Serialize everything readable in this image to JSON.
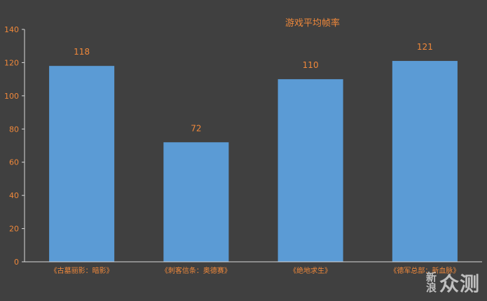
{
  "chart_data": {
    "type": "bar",
    "title": "游戏平均帧率",
    "categories": [
      "《古墓丽影：暗影》",
      "《刺客信条：奥德赛》",
      "《绝地求生》",
      "《德军总部：新血脉》"
    ],
    "values": [
      118,
      72,
      110,
      121
    ],
    "ylim": [
      0,
      140
    ],
    "yticks": [
      0,
      20,
      40,
      60,
      80,
      100,
      120,
      140
    ],
    "xlabel": "",
    "ylabel": "",
    "grid": false,
    "legend": "none",
    "colors": {
      "bar": "#5b9bd5",
      "text": "#f0883a",
      "axis": "#d9d9d9",
      "background": "#404040"
    }
  },
  "watermark": {
    "logo_top": "新",
    "logo_bottom": "浪",
    "text": "众测"
  }
}
